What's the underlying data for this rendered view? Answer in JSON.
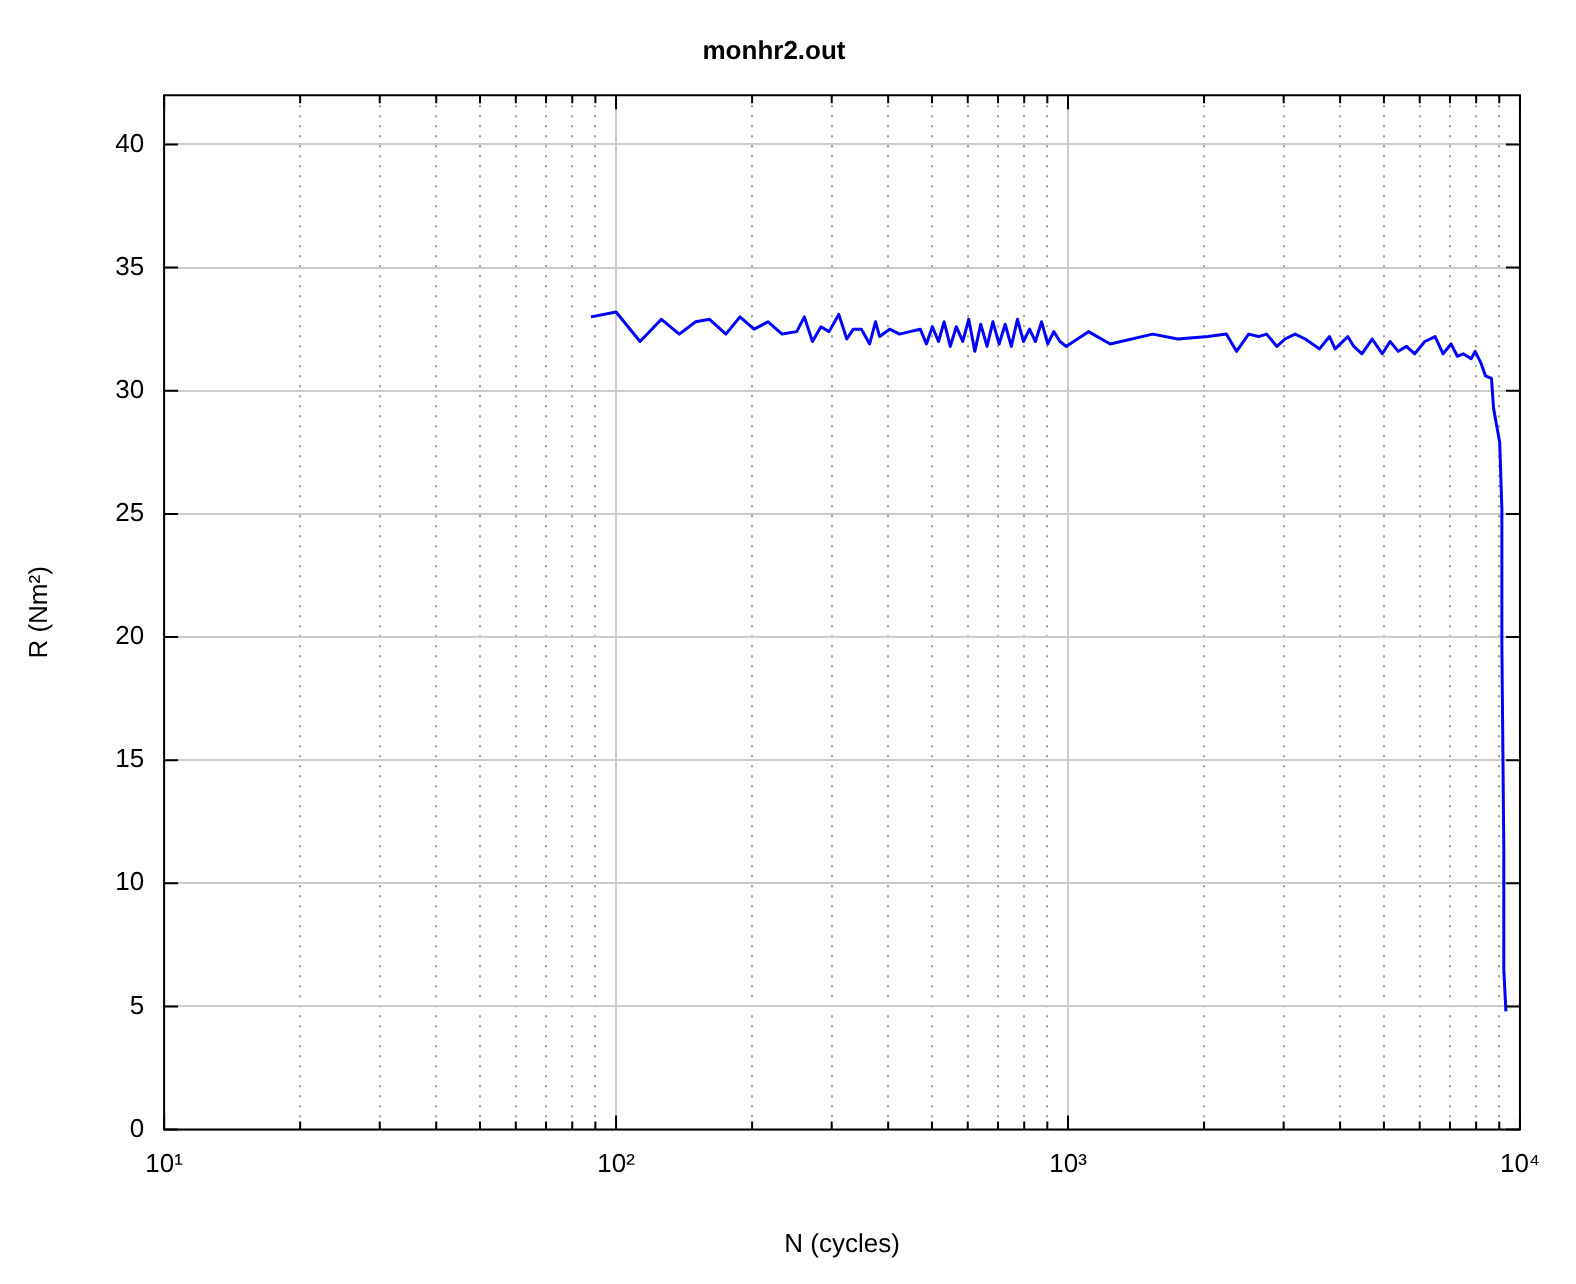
{
  "chart_data": {
    "type": "line",
    "title": "monhr2.out",
    "xlabel": "N (cycles)",
    "ylabel": "R (Nm²)",
    "log": "x",
    "grid": true,
    "legend": false,
    "marker": "none",
    "line_style": "solid",
    "xlim": [
      10,
      10000
    ],
    "ylim": [
      0,
      42
    ],
    "xticks": [
      {
        "value": 10,
        "label": "10¹"
      },
      {
        "value": 20,
        "label": null
      },
      {
        "value": 30,
        "label": null
      },
      {
        "value": 40,
        "label": null
      },
      {
        "value": 50,
        "label": null
      },
      {
        "value": 60,
        "label": null
      },
      {
        "value": 70,
        "label": null
      },
      {
        "value": 80,
        "label": null
      },
      {
        "value": 90,
        "label": null
      },
      {
        "value": 100,
        "label": "10²"
      },
      {
        "value": 200,
        "label": null
      },
      {
        "value": 300,
        "label": null
      },
      {
        "value": 400,
        "label": null
      },
      {
        "value": 500,
        "label": null
      },
      {
        "value": 600,
        "label": null
      },
      {
        "value": 700,
        "label": null
      },
      {
        "value": 800,
        "label": null
      },
      {
        "value": 900,
        "label": null
      },
      {
        "value": 1000,
        "label": "10³"
      },
      {
        "value": 2000,
        "label": null
      },
      {
        "value": 3000,
        "label": null
      },
      {
        "value": 4000,
        "label": null
      },
      {
        "value": 5000,
        "label": null
      },
      {
        "value": 6000,
        "label": null
      },
      {
        "value": 7000,
        "label": null
      },
      {
        "value": 8000,
        "label": null
      },
      {
        "value": 9000,
        "label": null
      },
      {
        "value": 10000,
        "label": "10⁴"
      }
    ],
    "yticks": [
      0,
      5,
      10,
      15,
      20,
      25,
      30,
      35,
      40
    ],
    "series": [
      {
        "color": "#0000ff",
        "x": [
          88,
          100,
          113,
          126,
          138,
          150,
          161,
          175,
          188,
          202,
          217,
          233,
          251,
          261,
          272,
          284,
          296,
          311,
          324,
          335,
          349,
          364,
          375,
          383,
          403,
          424,
          447,
          471,
          486,
          501,
          517,
          532,
          549,
          566,
          585,
          603,
          622,
          641,
          662,
          682,
          704,
          726,
          749,
          773,
          797,
          822,
          847,
          874,
          902,
          930,
          960,
          990,
          1110,
          1240,
          1540,
          1750,
          2040,
          2240,
          2360,
          2510,
          2640,
          2750,
          2900,
          3020,
          3180,
          3350,
          3600,
          3790,
          3900,
          4160,
          4290,
          4470,
          4710,
          4960,
          5160,
          5380,
          5610,
          5850,
          6160,
          6490,
          6760,
          7040,
          7270,
          7490,
          7800,
          7960,
          8210,
          8390,
          8650,
          8740,
          9020,
          9120,
          9120,
          9210,
          9210,
          9310
        ],
        "values": [
          33.0,
          33.2,
          32.0,
          32.9,
          32.3,
          32.8,
          32.9,
          32.3,
          33.0,
          32.5,
          32.8,
          32.3,
          32.4,
          33.0,
          32.0,
          32.6,
          32.4,
          33.1,
          32.1,
          32.5,
          32.5,
          31.9,
          32.8,
          32.2,
          32.5,
          32.3,
          32.4,
          32.5,
          31.9,
          32.6,
          32.0,
          32.8,
          31.8,
          32.6,
          32.0,
          32.9,
          31.6,
          32.7,
          31.8,
          32.8,
          31.9,
          32.7,
          31.8,
          32.9,
          32.0,
          32.5,
          32.0,
          32.8,
          31.9,
          32.4,
          32.0,
          31.8,
          32.4,
          31.9,
          32.3,
          32.1,
          32.2,
          32.3,
          31.6,
          32.3,
          32.2,
          32.3,
          31.8,
          32.1,
          32.3,
          32.1,
          31.7,
          32.2,
          31.7,
          32.2,
          31.8,
          31.5,
          32.1,
          31.5,
          32.0,
          31.6,
          31.8,
          31.5,
          32.0,
          32.2,
          31.5,
          31.9,
          31.4,
          31.5,
          31.3,
          31.6,
          31.1,
          30.6,
          30.5,
          29.3,
          27.9,
          25.2,
          19.7,
          11.4,
          6.5,
          4.8
        ]
      }
    ]
  }
}
